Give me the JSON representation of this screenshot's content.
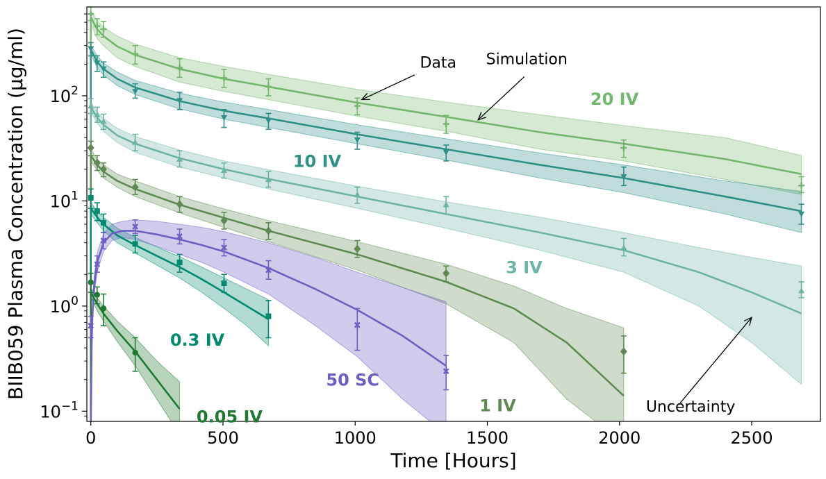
{
  "chart_data": {
    "type": "scatter",
    "title": "",
    "xlabel": "Time [Hours]",
    "ylabel": "BIIB059 Plasma Concentration (μg/ml)",
    "xlim": [
      -15,
      2760
    ],
    "ylim": [
      0.08,
      700
    ],
    "yscale": "log",
    "x_ticks": [
      0,
      500,
      1000,
      1500,
      2000,
      2500
    ],
    "y_ticks": [
      {
        "value": 0.1,
        "base": "10",
        "exp": "−1"
      },
      {
        "value": 1,
        "base": "10",
        "exp": "0"
      },
      {
        "value": 10,
        "base": "10",
        "exp": "1"
      },
      {
        "value": 100,
        "base": "10",
        "exp": "2"
      }
    ],
    "grid": false,
    "series": [
      {
        "name": "20 IV",
        "color": "#74b66e",
        "marker": "plus",
        "band_opacity": 0.3,
        "data": [
          [
            0,
            600,
            520,
            700
          ],
          [
            24,
            460,
            380,
            540
          ],
          [
            48,
            430,
            360,
            510
          ],
          [
            168,
            250,
            200,
            300
          ],
          [
            336,
            185,
            150,
            225
          ],
          [
            504,
            148,
            120,
            178
          ],
          [
            672,
            122,
            100,
            145
          ],
          [
            1008,
            80,
            66,
            95
          ],
          [
            1344,
            54,
            44,
            65
          ],
          [
            2016,
            32,
            26,
            38
          ],
          [
            2688,
            14,
            12,
            17
          ]
        ],
        "fit_t": [
          0,
          24,
          48,
          100,
          168,
          336,
          504,
          672,
          1008,
          1344,
          1700,
          2016,
          2400,
          2688
        ],
        "fit": [
          560,
          430,
          370,
          295,
          245,
          180,
          145,
          122,
          86,
          63,
          45,
          35,
          25,
          18
        ],
        "lo": [
          480,
          350,
          300,
          230,
          190,
          135,
          110,
          92,
          64,
          46,
          31,
          24,
          16,
          11.5
        ],
        "hi": [
          650,
          520,
          450,
          370,
          310,
          230,
          190,
          160,
          115,
          87,
          66,
          52,
          40,
          27
        ]
      },
      {
        "name": "10 IV",
        "color": "#2f9087",
        "marker": "triangle-down",
        "band_opacity": 0.3,
        "data": [
          [
            0,
            280,
            240,
            320
          ],
          [
            24,
            205,
            170,
            240
          ],
          [
            48,
            180,
            150,
            210
          ],
          [
            168,
            110,
            95,
            130
          ],
          [
            336,
            90,
            74,
            108
          ],
          [
            504,
            62,
            50,
            74
          ],
          [
            672,
            58,
            48,
            68
          ],
          [
            1008,
            38,
            31,
            45
          ],
          [
            1344,
            29,
            24,
            34
          ],
          [
            2016,
            17,
            14,
            21
          ],
          [
            2688,
            7.5,
            6,
            9.3
          ]
        ],
        "fit_t": [
          0,
          24,
          48,
          100,
          168,
          336,
          504,
          672,
          1008,
          1344,
          1700,
          2016,
          2400,
          2688
        ],
        "fit": [
          275,
          210,
          180,
          145,
          120,
          89,
          72,
          61,
          43,
          31,
          22,
          16.5,
          11,
          8
        ],
        "lo": [
          250,
          185,
          158,
          125,
          103,
          75,
          60,
          50,
          35,
          24.5,
          16.5,
          12,
          7.5,
          5
        ],
        "hi": [
          305,
          240,
          205,
          168,
          140,
          106,
          87,
          74,
          53,
          39,
          28.5,
          22,
          15.5,
          12.3
        ]
      },
      {
        "name": "3 IV",
        "color": "#6db4a4",
        "marker": "triangle-up",
        "band_opacity": 0.3,
        "data": [
          [
            0,
            80,
            68,
            94
          ],
          [
            24,
            66,
            56,
            78
          ],
          [
            48,
            57,
            48,
            67
          ],
          [
            168,
            36,
            30,
            43
          ],
          [
            336,
            25,
            21,
            30
          ],
          [
            504,
            19.5,
            16.5,
            23
          ],
          [
            672,
            16,
            13.5,
            19
          ],
          [
            1008,
            11.5,
            9.5,
            13.5
          ],
          [
            1344,
            9.2,
            7.5,
            11
          ],
          [
            2016,
            3.6,
            3,
            4.4
          ],
          [
            2688,
            1.4,
            1.2,
            1.7
          ]
        ],
        "fit_t": [
          0,
          24,
          48,
          100,
          168,
          336,
          504,
          672,
          1008,
          1344,
          1700,
          2016,
          2300,
          2500,
          2688
        ],
        "fit": [
          78,
          62,
          53,
          42,
          35,
          25.5,
          20,
          16.2,
          11,
          7.5,
          5,
          3.4,
          2.1,
          1.35,
          0.85
        ],
        "lo": [
          70,
          55,
          46,
          36,
          29,
          21,
          16.5,
          13,
          8.5,
          5.5,
          3.4,
          2.1,
          1.0,
          0.45,
          0.18
        ],
        "hi": [
          88,
          70,
          61,
          49,
          41,
          30.5,
          24,
          19.8,
          13.8,
          9.8,
          7,
          5,
          3.6,
          2.9,
          2.4
        ]
      },
      {
        "name": "1 IV",
        "color": "#5f8a53",
        "marker": "diamond",
        "band_opacity": 0.3,
        "data": [
          [
            0,
            32,
            27,
            37
          ],
          [
            24,
            23,
            19.5,
            27
          ],
          [
            48,
            20,
            17,
            23
          ],
          [
            168,
            13.5,
            11.5,
            16
          ],
          [
            336,
            9.3,
            7.8,
            11
          ],
          [
            504,
            6.5,
            5.4,
            7.8
          ],
          [
            672,
            5.2,
            4.3,
            6.2
          ],
          [
            1008,
            3.5,
            2.9,
            4.2
          ],
          [
            1344,
            2.05,
            1.7,
            2.4
          ],
          [
            2016,
            0.37,
            0.23,
            0.52
          ]
        ],
        "fit_t": [
          0,
          24,
          48,
          100,
          168,
          336,
          504,
          672,
          1008,
          1344,
          1600,
          1800,
          2016
        ],
        "fit": [
          27,
          22,
          19,
          15.5,
          13,
          9.2,
          6.9,
          5.2,
          3.1,
          1.7,
          0.95,
          0.45,
          0.14
        ],
        "lo": [
          24,
          19.5,
          16.5,
          13.5,
          11,
          7.7,
          5.6,
          4.1,
          2.2,
          1.05,
          0.45,
          0.13,
          0.05
        ],
        "hi": [
          31,
          25,
          22,
          18,
          15.5,
          11,
          8.4,
          6.5,
          4.1,
          2.5,
          1.55,
          0.95,
          0.62
        ]
      },
      {
        "name": "0.3 IV",
        "color": "#00896f",
        "marker": "square",
        "band_opacity": 0.3,
        "data": [
          [
            0,
            10.7,
            8.5,
            13
          ],
          [
            24,
            8,
            6.5,
            9.6
          ],
          [
            48,
            6.2,
            5,
            7.5
          ],
          [
            168,
            3.9,
            3.2,
            4.7
          ],
          [
            336,
            2.6,
            2.1,
            3.1
          ],
          [
            504,
            1.65,
            1.35,
            2
          ],
          [
            672,
            0.8,
            0.5,
            1.13
          ]
        ],
        "fit_t": [
          0,
          24,
          48,
          100,
          168,
          250,
          336,
          420,
          504,
          590,
          672
        ],
        "fit": [
          8.5,
          7,
          6,
          4.7,
          3.8,
          3,
          2.35,
          1.8,
          1.35,
          1,
          0.75
        ],
        "lo": [
          7.5,
          6.2,
          5.2,
          4,
          3.2,
          2.45,
          1.85,
          1.35,
          0.95,
          0.65,
          0.42
        ],
        "hi": [
          9.7,
          8,
          7,
          5.5,
          4.5,
          3.65,
          2.95,
          2.35,
          1.85,
          1.45,
          1.15
        ]
      },
      {
        "name": "50 SC",
        "color": "#6f5fc0",
        "marker": "cross",
        "band_opacity": 0.32,
        "data": [
          [
            0,
            0.65,
            0.5,
            0.8
          ],
          [
            24,
            2.5,
            2.1,
            3
          ],
          [
            48,
            4.2,
            3.5,
            5
          ],
          [
            168,
            5.7,
            4.9,
            6.6
          ],
          [
            336,
            4.6,
            3.9,
            5.4
          ],
          [
            504,
            3.6,
            3,
            4.3
          ],
          [
            672,
            2.2,
            1.8,
            2.7
          ],
          [
            1008,
            0.66,
            0.38,
            0.95
          ],
          [
            1344,
            0.24,
            0.16,
            0.34
          ]
        ],
        "fit_t": [
          1,
          3,
          6,
          12,
          24,
          48,
          80,
          120,
          168,
          250,
          336,
          420,
          504,
          672,
          850,
          1008,
          1180,
          1344
        ],
        "fit": [
          0.12,
          0.4,
          0.8,
          1.5,
          2.6,
          4,
          4.9,
          5.2,
          5.2,
          4.8,
          4.3,
          3.8,
          3.3,
          2.3,
          1.45,
          0.92,
          0.52,
          0.27
        ],
        "lo": [
          0.1,
          0.32,
          0.65,
          1.2,
          2.1,
          3.3,
          4.2,
          4.5,
          4.3,
          3.7,
          3.1,
          2.6,
          2.1,
          1.3,
          0.65,
          0.33,
          0.13,
          0.06
        ],
        "hi": [
          0.15,
          0.5,
          1.0,
          1.9,
          3.2,
          4.9,
          6,
          6.4,
          6.6,
          6.4,
          6.0,
          5.6,
          5.1,
          4.0,
          2.9,
          2.1,
          1.5,
          1.1
        ]
      },
      {
        "name": "0.05 IV",
        "color": "#217833",
        "marker": "circle",
        "band_opacity": 0.32,
        "data": [
          [
            0,
            1.68,
            1.35,
            2.05
          ],
          [
            24,
            1.28,
            1.05,
            1.52
          ],
          [
            48,
            0.95,
            0.65,
            1.3
          ],
          [
            168,
            0.36,
            0.24,
            0.5
          ]
        ],
        "fit_t": [
          0,
          24,
          48,
          100,
          168,
          250,
          336
        ],
        "fit": [
          1.35,
          1.05,
          0.85,
          0.58,
          0.37,
          0.2,
          0.105
        ],
        "lo": [
          1.2,
          0.9,
          0.72,
          0.46,
          0.27,
          0.13,
          0.06
        ],
        "hi": [
          1.5,
          1.2,
          1.0,
          0.72,
          0.5,
          0.3,
          0.19
        ]
      }
    ],
    "dose_labels": [
      {
        "text": "20 IV",
        "color": "#74b66e",
        "x": 1890,
        "y": 82
      },
      {
        "text": "10 IV",
        "color": "#2f9087",
        "x": 765,
        "y": 21
      },
      {
        "text": "3 IV",
        "color": "#6db4a4",
        "x": 1570,
        "y": 2.05
      },
      {
        "text": "1 IV",
        "color": "#5f8a53",
        "x": 1470,
        "y": 0.1
      },
      {
        "text": "0.3 IV",
        "color": "#00896f",
        "x": 300,
        "y": 0.42
      },
      {
        "text": "50 SC",
        "color": "#6f5fc0",
        "x": 890,
        "y": 0.175
      },
      {
        "text": "0.05 IV",
        "color": "#217833",
        "x": 400,
        "y": 0.078
      }
    ],
    "annotations": [
      {
        "text": "Data",
        "text_x": 1245,
        "text_y": 185,
        "arrow_from": [
          1225,
          158
        ],
        "arrow_to": [
          1025,
          92
        ]
      },
      {
        "text": "Simulation",
        "text_x": 1495,
        "text_y": 200,
        "arrow_from": [
          1640,
          152
        ],
        "arrow_to": [
          1465,
          59
        ]
      },
      {
        "text": "Uncertainty",
        "text_x": 2100,
        "text_y": 0.099,
        "arrow_from": [
          2230,
          0.12
        ],
        "arrow_to": [
          2500,
          0.78
        ]
      }
    ]
  }
}
